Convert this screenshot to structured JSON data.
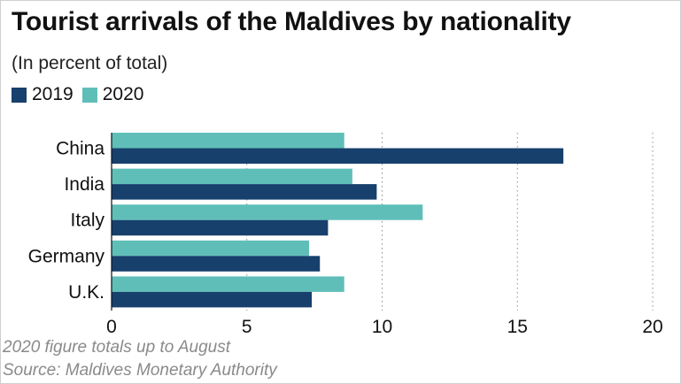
{
  "chart_data": {
    "type": "bar",
    "orientation": "horizontal",
    "title": "Tourist arrivals of the Maldives by nationality",
    "subtitle": "(In percent of total)",
    "categories": [
      "China",
      "India",
      "Italy",
      "Germany",
      "U.K."
    ],
    "series": [
      {
        "name": "2020",
        "color": "#5fbfb8",
        "values": [
          8.6,
          8.9,
          11.5,
          7.3,
          8.6
        ]
      },
      {
        "name": "2019",
        "color": "#17406d",
        "values": [
          16.7,
          9.8,
          8.0,
          7.7,
          7.4
        ]
      }
    ],
    "legend_order": [
      "2019",
      "2020"
    ],
    "xlim": [
      0,
      20
    ],
    "xticks": [
      "0",
      "5",
      "10",
      "15",
      "20"
    ],
    "xlabel": "",
    "ylabel": "",
    "grid": "vertical dotted",
    "legend_position": "top-left"
  },
  "footnotes": {
    "note": "2020 figure totals up to August",
    "source": "Source: Maldives Monetary Authority"
  }
}
